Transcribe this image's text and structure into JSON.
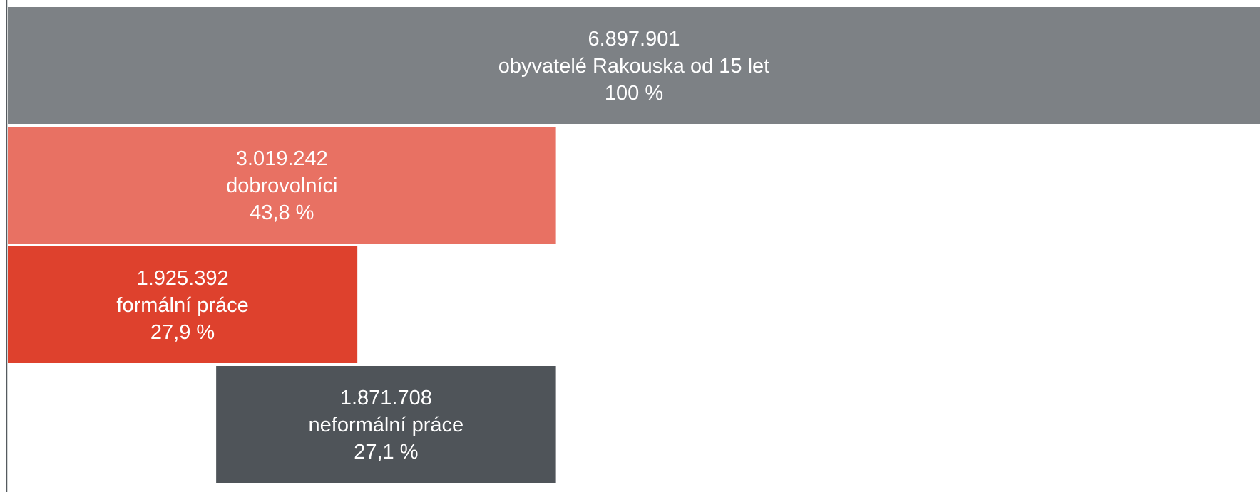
{
  "chart_data": {
    "type": "bar",
    "orientation": "horizontal",
    "baseline_total": 6897901,
    "bars": [
      {
        "value": 6897901,
        "value_label": "6.897.901",
        "label": "obyvatelé Rakouska od 15 let",
        "percent_label": "100 %",
        "percent": 100,
        "start_value": 0,
        "color": "#7d8185"
      },
      {
        "value": 3019242,
        "value_label": "3.019.242",
        "label": "dobrovolníci",
        "percent_label": "43,8 %",
        "percent": 43.8,
        "start_value": 0,
        "color": "#e87163"
      },
      {
        "value": 1925392,
        "value_label": "1.925.392",
        "label": "formální práce",
        "percent_label": "27,9 %",
        "percent": 27.9,
        "start_value": 0,
        "color": "#de412d"
      },
      {
        "value": 1871708,
        "value_label": "1.871.708",
        "label": "neformální práce",
        "percent_label": "27,1 %",
        "percent": 27.1,
        "start_value": 1147534,
        "color": "#4f5459"
      }
    ]
  }
}
